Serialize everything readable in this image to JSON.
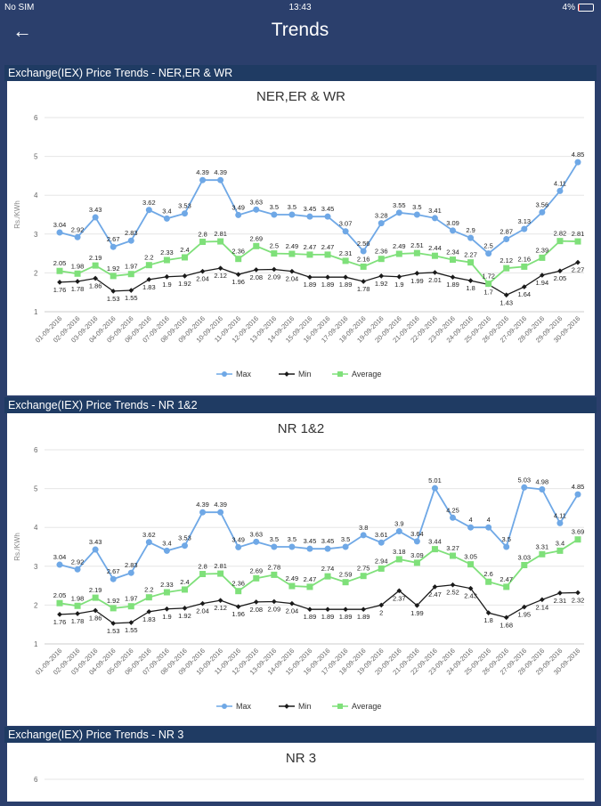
{
  "status_bar": {
    "carrier": "No SIM",
    "time": "13:43",
    "battery": "4%"
  },
  "header": {
    "title": "Trends",
    "back_icon": "arrow-left-icon"
  },
  "colors": {
    "max": "#6fa8e6",
    "min": "#1a1a1a",
    "average": "#7fe07a",
    "header_bg": "#2b3f6c",
    "section_bg": "#1f3b63"
  },
  "sections": [
    {
      "heading": "Exchange(IEX) Price Trends - NER,ER & WR"
    },
    {
      "heading": "Exchange(IEX) Price Trends - NR 1&2"
    },
    {
      "heading": "Exchange(IEX) Price Trends - NR 3"
    }
  ],
  "chart_data": [
    {
      "type": "line",
      "title": "NER,ER & WR",
      "ylabel": "Rs./KWh",
      "ylim": [
        1,
        6
      ],
      "yticks": [
        "1",
        "2",
        "3",
        "4",
        "5",
        "6"
      ],
      "grid": true,
      "legend": "bottom",
      "x": [
        "01-09-2016",
        "02-09-2016",
        "03-09-2016",
        "04-09-2016",
        "05-09-2016",
        "06-09-2016",
        "07-09-2016",
        "08-09-2016",
        "09-09-2016",
        "10-09-2016",
        "11-09-2016",
        "12-09-2016",
        "13-09-2016",
        "14-09-2016",
        "15-09-2016",
        "16-09-2016",
        "17-09-2016",
        "18-09-2016",
        "19-09-2016",
        "20-09-2016",
        "21-09-2016",
        "22-09-2016",
        "23-09-2016",
        "24-09-2016",
        "25-09-2016",
        "26-09-2016",
        "27-09-2016",
        "28-09-2016",
        "29-09-2016",
        "30-09-2016"
      ],
      "series": [
        {
          "name": "Max",
          "values": [
            3.04,
            2.92,
            3.43,
            2.67,
            2.83,
            3.62,
            3.4,
            3.53,
            4.39,
            4.39,
            3.49,
            3.63,
            3.5,
            3.5,
            3.45,
            3.45,
            3.07,
            2.56,
            3.28,
            3.55,
            3.5,
            3.41,
            3.09,
            2.9,
            2.5,
            2.87,
            3.13,
            3.56,
            4.11,
            4.85
          ]
        },
        {
          "name": "Min",
          "values": [
            1.76,
            1.78,
            1.86,
            1.53,
            1.55,
            1.83,
            1.9,
            1.92,
            2.04,
            2.12,
            1.96,
            2.08,
            2.09,
            2.04,
            1.89,
            1.89,
            1.89,
            1.78,
            1.92,
            1.9,
            1.99,
            2.01,
            1.89,
            1.8,
            1.7,
            1.43,
            1.64,
            1.94,
            2.05,
            2.27
          ]
        },
        {
          "name": "Average",
          "values": [
            2.05,
            1.98,
            2.19,
            1.92,
            1.97,
            2.2,
            2.33,
            2.4,
            2.8,
            2.81,
            2.36,
            2.69,
            2.5,
            2.49,
            2.47,
            2.47,
            2.31,
            2.16,
            2.36,
            2.49,
            2.51,
            2.44,
            2.34,
            2.27,
            1.72,
            2.12,
            2.16,
            2.39,
            2.82,
            2.81
          ]
        }
      ]
    },
    {
      "type": "line",
      "title": "NR 1&2",
      "ylabel": "Rs./KWh",
      "ylim": [
        1,
        6
      ],
      "yticks": [
        "1",
        "2",
        "3",
        "4",
        "5",
        "6"
      ],
      "grid": true,
      "legend": "bottom",
      "x": [
        "01-09-2016",
        "02-09-2016",
        "03-09-2016",
        "04-09-2016",
        "05-09-2016",
        "06-09-2016",
        "07-09-2016",
        "08-09-2016",
        "09-09-2016",
        "10-09-2016",
        "11-09-2016",
        "12-09-2016",
        "13-09-2016",
        "14-09-2016",
        "15-09-2016",
        "16-09-2016",
        "17-09-2016",
        "18-09-2016",
        "19-09-2016",
        "20-09-2016",
        "21-09-2016",
        "22-09-2016",
        "23-09-2016",
        "24-09-2016",
        "25-09-2016",
        "26-09-2016",
        "27-09-2016",
        "28-09-2016",
        "29-09-2016",
        "30-09-2016"
      ],
      "series": [
        {
          "name": "Max",
          "values": [
            3.04,
            2.92,
            3.43,
            2.67,
            2.83,
            3.62,
            3.4,
            3.53,
            4.39,
            4.39,
            3.49,
            3.63,
            3.5,
            3.5,
            3.45,
            3.45,
            3.5,
            3.8,
            3.61,
            3.9,
            3.64,
            5.01,
            4.25,
            4,
            4,
            3.5,
            5.03,
            4.98,
            4.11,
            4.85
          ]
        },
        {
          "name": "Min",
          "values": [
            1.76,
            1.78,
            1.86,
            1.53,
            1.55,
            1.83,
            1.9,
            1.92,
            2.04,
            2.12,
            1.96,
            2.08,
            2.09,
            2.04,
            1.89,
            1.89,
            1.89,
            1.89,
            2,
            2.37,
            1.99,
            2.47,
            2.52,
            2.43,
            1.8,
            1.68,
            1.95,
            2.14,
            2.31,
            2.32
          ]
        },
        {
          "name": "Average",
          "values": [
            2.05,
            1.98,
            2.19,
            1.92,
            1.97,
            2.2,
            2.33,
            2.4,
            2.8,
            2.81,
            2.36,
            2.69,
            2.78,
            2.49,
            2.47,
            2.74,
            2.59,
            2.75,
            2.94,
            3.18,
            3.09,
            3.44,
            3.27,
            3.05,
            2.6,
            2.47,
            3.03,
            3.31,
            3.4,
            3.69
          ]
        }
      ]
    },
    {
      "type": "line",
      "title": "NR 3",
      "yticks": [
        "6"
      ],
      "grid": true
    }
  ]
}
